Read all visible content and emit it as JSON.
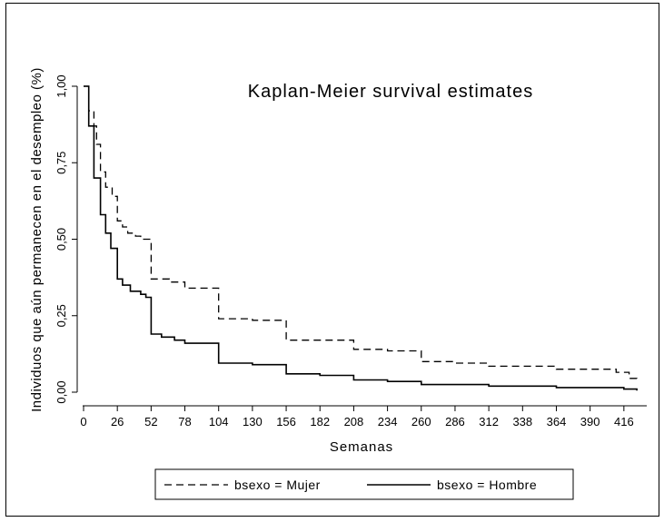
{
  "chart_data": {
    "type": "line",
    "title": "Kaplan-Meier survival estimates",
    "xlabel": "Semanas",
    "ylabel": "Individuos que aún permanecen en el desempleo (%)",
    "xlim": [
      0,
      428
    ],
    "ylim": [
      0,
      1
    ],
    "xticks": [
      0,
      26,
      52,
      78,
      104,
      130,
      156,
      182,
      208,
      234,
      260,
      286,
      312,
      338,
      364,
      390,
      416
    ],
    "xtick_labels": [
      "0",
      "26",
      "52",
      "78",
      "104",
      "130",
      "156",
      "182",
      "208",
      "234",
      "260",
      "286",
      "312",
      "338",
      "364",
      "390",
      "416"
    ],
    "yticks": [
      0,
      0.25,
      0.5,
      0.75,
      1.0
    ],
    "ytick_labels": [
      "0,00",
      "0,25",
      "0,50",
      "0,75",
      "1,00"
    ],
    "grid": false,
    "legend_placement": "bottom",
    "series": [
      {
        "name": "bsexo = Mujer",
        "style": "dashed",
        "color": "#000000",
        "steps": [
          [
            0,
            1.0
          ],
          [
            4,
            0.92
          ],
          [
            8,
            0.87
          ],
          [
            10,
            0.81
          ],
          [
            13,
            0.72
          ],
          [
            17,
            0.67
          ],
          [
            22,
            0.64
          ],
          [
            26,
            0.56
          ],
          [
            30,
            0.54
          ],
          [
            34,
            0.52
          ],
          [
            40,
            0.51
          ],
          [
            44,
            0.5
          ],
          [
            52,
            0.37
          ],
          [
            66,
            0.36
          ],
          [
            78,
            0.34
          ],
          [
            104,
            0.24
          ],
          [
            130,
            0.235
          ],
          [
            156,
            0.17
          ],
          [
            182,
            0.17
          ],
          [
            208,
            0.14
          ],
          [
            234,
            0.135
          ],
          [
            260,
            0.1
          ],
          [
            286,
            0.095
          ],
          [
            312,
            0.085
          ],
          [
            364,
            0.075
          ],
          [
            410,
            0.065
          ],
          [
            420,
            0.045
          ],
          [
            426,
            0.035
          ]
        ]
      },
      {
        "name": "bsexo = Hombre",
        "style": "solid",
        "color": "#000000",
        "steps": [
          [
            0,
            1.0
          ],
          [
            4,
            0.87
          ],
          [
            8,
            0.7
          ],
          [
            13,
            0.58
          ],
          [
            17,
            0.52
          ],
          [
            21,
            0.47
          ],
          [
            26,
            0.37
          ],
          [
            30,
            0.35
          ],
          [
            36,
            0.33
          ],
          [
            44,
            0.32
          ],
          [
            48,
            0.31
          ],
          [
            52,
            0.19
          ],
          [
            60,
            0.18
          ],
          [
            70,
            0.17
          ],
          [
            78,
            0.16
          ],
          [
            104,
            0.095
          ],
          [
            130,
            0.09
          ],
          [
            156,
            0.06
          ],
          [
            182,
            0.055
          ],
          [
            208,
            0.04
          ],
          [
            234,
            0.035
          ],
          [
            260,
            0.025
          ],
          [
            312,
            0.02
          ],
          [
            364,
            0.015
          ],
          [
            416,
            0.01
          ],
          [
            426,
            0.005
          ]
        ]
      }
    ]
  }
}
